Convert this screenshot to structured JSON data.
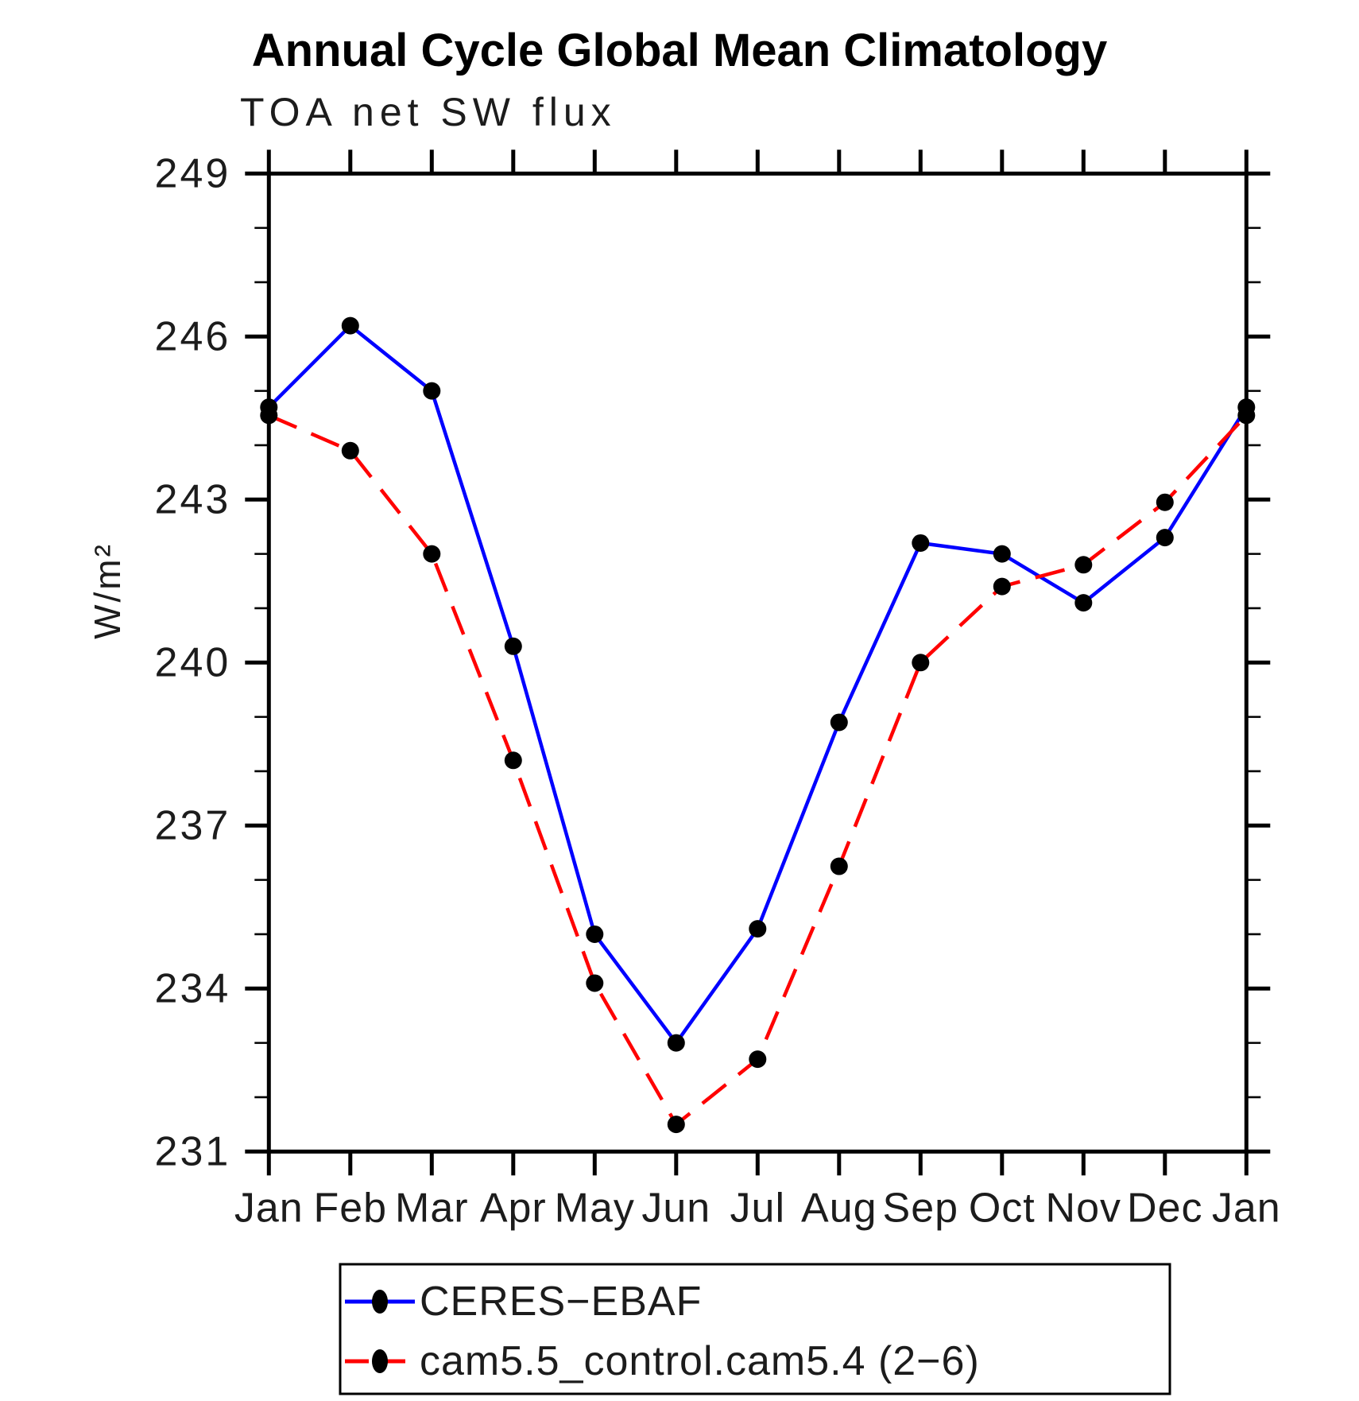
{
  "title": "Annual Cycle Global Mean Climatology",
  "subtitle": "TOA net SW flux",
  "ylabel": "W/m²",
  "chart_data": {
    "type": "line",
    "x_categories": [
      "Jan",
      "Feb",
      "Mar",
      "Apr",
      "May",
      "Jun",
      "Jul",
      "Aug",
      "Sep",
      "Oct",
      "Nov",
      "Dec",
      "Jan"
    ],
    "series": [
      {
        "name": "CERES−EBAF",
        "line_color": "#0000ff",
        "line_style": "solid",
        "marker": "filled-circle",
        "marker_color": "#000000",
        "values": [
          244.7,
          246.2,
          245.0,
          240.3,
          235.0,
          233.0,
          235.1,
          238.9,
          242.2,
          242.0,
          241.1,
          242.3,
          244.7
        ]
      },
      {
        "name": "cam5.5_control.cam5.4 (2−6)",
        "line_color": "#ff0000",
        "line_style": "dashed",
        "marker": "filled-circle",
        "marker_color": "#000000",
        "values": [
          244.55,
          243.9,
          242.0,
          238.2,
          234.1,
          231.5,
          232.7,
          236.25,
          240.0,
          241.4,
          241.8,
          242.95,
          244.55
        ]
      }
    ],
    "ylim": [
      231,
      249
    ],
    "y_major_ticks": [
      231,
      234,
      237,
      240,
      243,
      246,
      249
    ],
    "y_minor_step": 1,
    "x_tick_every_month": true,
    "grid": false,
    "legend_position": "bottom",
    "axis_color": "#000000"
  }
}
